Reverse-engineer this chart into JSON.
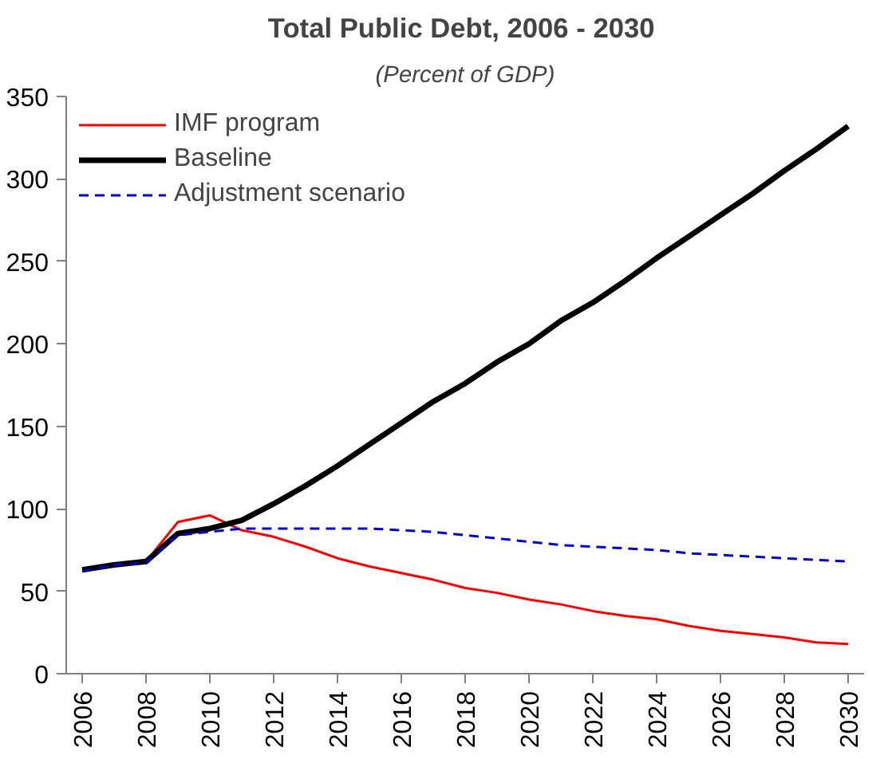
{
  "chart_data": {
    "type": "line",
    "title": "Total Public Debt, 2006  - 2030",
    "subtitle": "(Percent of GDP)",
    "x": [
      2006,
      2007,
      2008,
      2009,
      2010,
      2011,
      2012,
      2013,
      2014,
      2015,
      2016,
      2017,
      2018,
      2019,
      2020,
      2021,
      2022,
      2023,
      2024,
      2025,
      2026,
      2027,
      2028,
      2029,
      2030
    ],
    "series": [
      {
        "name": "IMF program",
        "color": "#ff0000",
        "values": [
          63,
          66,
          68,
          92,
          96,
          87,
          83,
          77,
          70,
          65,
          61,
          57,
          52,
          49,
          45,
          42,
          38,
          35,
          33,
          29,
          26,
          24,
          22,
          19,
          18
        ],
        "line_style": "solid"
      },
      {
        "name": "Baseline",
        "color": "#000000",
        "values": [
          63,
          66,
          68,
          85,
          88,
          93,
          103,
          114,
          126,
          139,
          152,
          165,
          176,
          189,
          200,
          214,
          225,
          238,
          252,
          265,
          278,
          291,
          305,
          318,
          332
        ],
        "line_style": "solid"
      },
      {
        "name": "Adjustment scenario",
        "color": "#0000cc",
        "values": [
          62,
          66,
          67,
          84,
          86,
          88,
          88,
          88,
          88,
          88,
          87,
          86,
          84,
          82,
          80,
          78,
          77,
          76,
          75,
          73,
          72,
          71,
          70,
          69,
          68
        ],
        "line_style": "dashed"
      }
    ],
    "xlim": [
      2005.5,
      2030.5
    ],
    "xticks": [
      2006,
      2008,
      2010,
      2012,
      2014,
      2016,
      2018,
      2020,
      2022,
      2024,
      2026,
      2028,
      2030
    ],
    "ylim": [
      0,
      350
    ],
    "yticks": [
      0,
      50,
      100,
      150,
      200,
      250,
      300,
      350
    ],
    "grid": false,
    "legend": "top left",
    "marker": "none"
  }
}
